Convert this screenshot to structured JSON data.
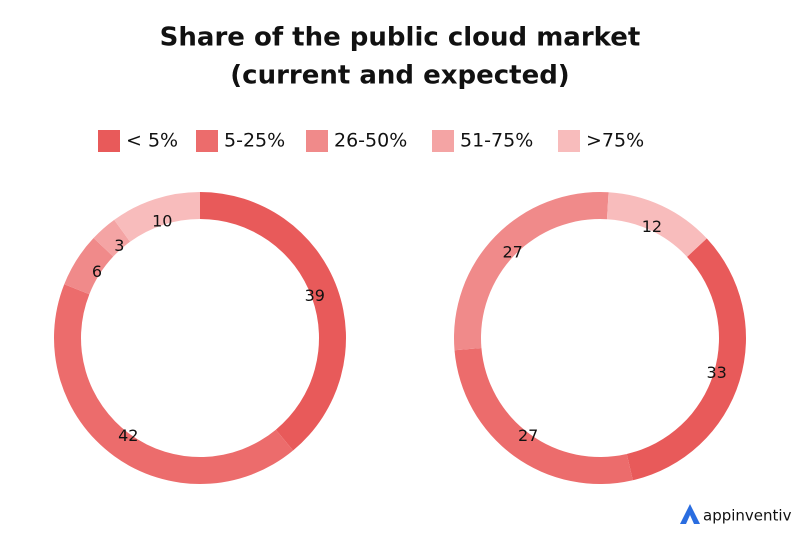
{
  "title": [
    "Share of the public cloud market",
    "(current and expected)"
  ],
  "brand": "appinventiv",
  "chart_data": [
    {
      "type": "pie",
      "categories": [
        "< 5%",
        "5-25%",
        "26-50%",
        "51-75%",
        ">75%"
      ],
      "colors": [
        "#e85a5a",
        "#ec6c6c",
        "#f08a8a",
        "#f4a4a4",
        "#f8bcbc"
      ],
      "values": [
        39,
        42,
        6,
        3,
        10
      ]
    },
    {
      "type": "pie",
      "categories": [
        "< 5%",
        "5-25%",
        "26-50%",
        "51-75%",
        ">75%"
      ],
      "colors": [
        "#e85a5a",
        "#ec6c6c",
        "#f08a8a",
        "#f4a4a4",
        "#f8bcbc"
      ],
      "values": [
        33,
        27,
        27,
        null,
        12
      ]
    }
  ]
}
